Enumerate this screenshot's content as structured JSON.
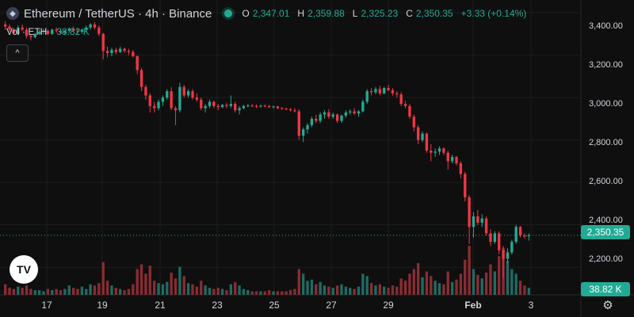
{
  "header": {
    "symbol": "Ethereum / TetherUS · 4h · Binance",
    "coin_icon": "ethereum-icon",
    "open_label": "O",
    "open": "2,347.01",
    "high_label": "H",
    "high": "2,359.88",
    "low_label": "L",
    "low": "2,325.23",
    "close_label": "C",
    "close": "2,350.35",
    "change": "+3.33 (+0.14%)"
  },
  "volume_legend": {
    "label": "Vol · ETH",
    "value": "38.82 K"
  },
  "collapse_icon": "chevron-up-icon",
  "price_axis": {
    "ticks": [
      "3,400.00",
      "3,200.00",
      "3,000.00",
      "2,800.00",
      "2,600.00",
      "2,400.00",
      "2,200.00"
    ],
    "last_price": "2,350.35",
    "last_volume": "38.82 K"
  },
  "time_axis": {
    "ticks": [
      "17",
      "19",
      "21",
      "23",
      "25",
      "27",
      "29",
      "Feb",
      "3"
    ]
  },
  "logo": "TV",
  "settings_icon": "gear-icon",
  "colors": {
    "up": "#22ab94",
    "down": "#f23645",
    "up_volume": "#1f6b63",
    "down_volume": "#8a2c33",
    "background": "#0f0f0f",
    "grid": "#1e1e1e"
  },
  "chart_data": {
    "type": "candlestick",
    "title": "Ethereum / TetherUS · 4h · Binance",
    "x_axis": "date (Jan 16 – Feb 3), 4h candles",
    "y_axis_range": [
      2070,
      3460
    ],
    "grid": true,
    "last_price": 2350.35,
    "candles": [
      [
        3345,
        3360,
        3320,
        3335,
        9
      ],
      [
        3335,
        3345,
        3310,
        3320,
        6
      ],
      [
        3320,
        3330,
        3300,
        3305,
        5
      ],
      [
        3300,
        3340,
        3295,
        3330,
        7
      ],
      [
        3330,
        3345,
        3315,
        3320,
        6
      ],
      [
        3320,
        3330,
        3280,
        3290,
        8
      ],
      [
        3290,
        3300,
        3270,
        3285,
        5
      ],
      [
        3285,
        3305,
        3280,
        3300,
        4
      ],
      [
        3300,
        3320,
        3295,
        3310,
        4
      ],
      [
        3310,
        3325,
        3300,
        3315,
        3
      ],
      [
        3315,
        3320,
        3295,
        3300,
        5
      ],
      [
        3300,
        3325,
        3295,
        3320,
        4
      ],
      [
        3320,
        3330,
        3305,
        3315,
        5
      ],
      [
        3315,
        3325,
        3300,
        3305,
        4
      ],
      [
        3305,
        3320,
        3295,
        3315,
        5
      ],
      [
        3315,
        3330,
        3305,
        3325,
        8
      ],
      [
        3325,
        3335,
        3310,
        3315,
        6
      ],
      [
        3315,
        3325,
        3300,
        3310,
        5
      ],
      [
        3310,
        3325,
        3300,
        3320,
        7
      ],
      [
        3320,
        3340,
        3310,
        3330,
        5
      ],
      [
        3330,
        3350,
        3320,
        3345,
        9
      ],
      [
        3345,
        3355,
        3320,
        3330,
        8
      ],
      [
        3330,
        3340,
        3290,
        3300,
        10
      ],
      [
        3300,
        3305,
        3180,
        3220,
        28
      ],
      [
        3220,
        3240,
        3190,
        3210,
        12
      ],
      [
        3210,
        3235,
        3195,
        3225,
        8
      ],
      [
        3225,
        3235,
        3205,
        3215,
        6
      ],
      [
        3215,
        3240,
        3210,
        3230,
        5
      ],
      [
        3230,
        3235,
        3210,
        3220,
        4
      ],
      [
        3220,
        3230,
        3200,
        3215,
        5
      ],
      [
        3215,
        3225,
        3190,
        3195,
        9
      ],
      [
        3195,
        3200,
        3110,
        3130,
        22
      ],
      [
        3130,
        3140,
        3030,
        3050,
        26
      ],
      [
        3050,
        3060,
        2990,
        3010,
        18
      ],
      [
        3010,
        3020,
        2930,
        2960,
        25
      ],
      [
        2960,
        2980,
        2930,
        2950,
        12
      ],
      [
        2950,
        2990,
        2940,
        2980,
        10
      ],
      [
        2980,
        3010,
        2960,
        3000,
        9
      ],
      [
        3000,
        3040,
        2990,
        3030,
        11
      ],
      [
        3030,
        3050,
        2940,
        2950,
        19
      ],
      [
        2950,
        2960,
        2870,
        2940,
        14
      ],
      [
        2940,
        3070,
        2930,
        3050,
        24
      ],
      [
        3050,
        3060,
        3000,
        3010,
        16
      ],
      [
        3010,
        3040,
        3000,
        3030,
        10
      ],
      [
        3030,
        3040,
        2990,
        3000,
        9
      ],
      [
        3000,
        3020,
        2980,
        2990,
        7
      ],
      [
        2990,
        3000,
        2940,
        2950,
        12
      ],
      [
        2950,
        2970,
        2930,
        2960,
        8
      ],
      [
        2960,
        2990,
        2950,
        2980,
        6
      ],
      [
        2980,
        2985,
        2950,
        2960,
        5
      ],
      [
        2960,
        2970,
        2940,
        2955,
        6
      ],
      [
        2955,
        2970,
        2950,
        2965,
        5
      ],
      [
        2965,
        2975,
        2950,
        2960,
        4
      ],
      [
        2960,
        3010,
        2950,
        2970,
        9
      ],
      [
        2970,
        2980,
        2930,
        2940,
        11
      ],
      [
        2940,
        2960,
        2920,
        2950,
        8
      ],
      [
        2950,
        2965,
        2945,
        2960,
        5
      ],
      [
        2960,
        2970,
        2955,
        2962,
        4
      ],
      [
        2962,
        2970,
        2955,
        2960,
        3
      ],
      [
        2960,
        2968,
        2950,
        2958,
        3
      ],
      [
        2958,
        2966,
        2952,
        2962,
        3
      ],
      [
        2962,
        2968,
        2955,
        2960,
        3
      ],
      [
        2960,
        2965,
        2950,
        2955,
        4
      ],
      [
        2955,
        2962,
        2948,
        2958,
        3
      ],
      [
        2958,
        2962,
        2945,
        2950,
        3
      ],
      [
        2950,
        2956,
        2942,
        2948,
        3
      ],
      [
        2948,
        2952,
        2940,
        2945,
        3
      ],
      [
        2945,
        2950,
        2935,
        2940,
        4
      ],
      [
        2940,
        2950,
        2930,
        2935,
        5
      ],
      [
        2935,
        2945,
        2800,
        2820,
        22
      ],
      [
        2820,
        2860,
        2790,
        2850,
        18
      ],
      [
        2850,
        2880,
        2830,
        2870,
        12
      ],
      [
        2870,
        2910,
        2860,
        2900,
        13
      ],
      [
        2900,
        2920,
        2880,
        2890,
        9
      ],
      [
        2890,
        2930,
        2880,
        2920,
        11
      ],
      [
        2920,
        2940,
        2900,
        2930,
        8
      ],
      [
        2930,
        2945,
        2900,
        2910,
        7
      ],
      [
        2910,
        2930,
        2900,
        2920,
        6
      ],
      [
        2920,
        2925,
        2880,
        2890,
        8
      ],
      [
        2890,
        2920,
        2880,
        2915,
        9
      ],
      [
        2915,
        2940,
        2905,
        2930,
        7
      ],
      [
        2930,
        2945,
        2920,
        2935,
        6
      ],
      [
        2935,
        2950,
        2920,
        2925,
        5
      ],
      [
        2925,
        2940,
        2910,
        2935,
        7
      ],
      [
        2935,
        2990,
        2930,
        2980,
        18
      ],
      [
        2980,
        3040,
        2970,
        3030,
        16
      ],
      [
        3030,
        3045,
        3010,
        3025,
        10
      ],
      [
        3025,
        3050,
        3015,
        3040,
        8
      ],
      [
        3040,
        3055,
        3010,
        3020,
        9
      ],
      [
        3020,
        3050,
        3015,
        3045,
        7
      ],
      [
        3045,
        3060,
        3030,
        3035,
        6
      ],
      [
        3035,
        3045,
        3010,
        3020,
        8
      ],
      [
        3020,
        3030,
        3000,
        3015,
        7
      ],
      [
        3015,
        3025,
        2960,
        2970,
        14
      ],
      [
        2970,
        2985,
        2950,
        2960,
        12
      ],
      [
        2960,
        2970,
        2900,
        2910,
        18
      ],
      [
        2910,
        2920,
        2840,
        2860,
        22
      ],
      [
        2860,
        2870,
        2780,
        2800,
        27
      ],
      [
        2800,
        2840,
        2790,
        2830,
        15
      ],
      [
        2830,
        2835,
        2740,
        2750,
        20
      ],
      [
        2750,
        2780,
        2700,
        2740,
        16
      ],
      [
        2740,
        2760,
        2720,
        2745,
        12
      ],
      [
        2745,
        2770,
        2730,
        2760,
        10
      ],
      [
        2760,
        2765,
        2730,
        2740,
        9
      ],
      [
        2740,
        2750,
        2660,
        2700,
        20
      ],
      [
        2700,
        2730,
        2690,
        2720,
        11
      ],
      [
        2720,
        2725,
        2680,
        2690,
        13
      ],
      [
        2690,
        2700,
        2620,
        2640,
        18
      ],
      [
        2640,
        2650,
        2510,
        2530,
        30
      ],
      [
        2530,
        2540,
        2310,
        2390,
        42
      ],
      [
        2390,
        2460,
        2340,
        2440,
        22
      ],
      [
        2440,
        2470,
        2400,
        2410,
        17
      ],
      [
        2410,
        2450,
        2390,
        2430,
        14
      ],
      [
        2430,
        2440,
        2350,
        2360,
        19
      ],
      [
        2360,
        2380,
        2300,
        2320,
        26
      ],
      [
        2320,
        2370,
        2310,
        2360,
        20
      ],
      [
        2360,
        2370,
        2260,
        2280,
        33
      ],
      [
        2280,
        2300,
        2150,
        2240,
        40
      ],
      [
        2240,
        2290,
        2220,
        2270,
        29
      ],
      [
        2270,
        2330,
        2260,
        2320,
        22
      ],
      [
        2320,
        2400,
        2310,
        2390,
        18
      ],
      [
        2390,
        2395,
        2340,
        2350,
        12
      ],
      [
        2350,
        2360,
        2335,
        2345,
        8
      ],
      [
        2347.01,
        2359.88,
        2325.23,
        2350.35,
        6
      ]
    ]
  }
}
